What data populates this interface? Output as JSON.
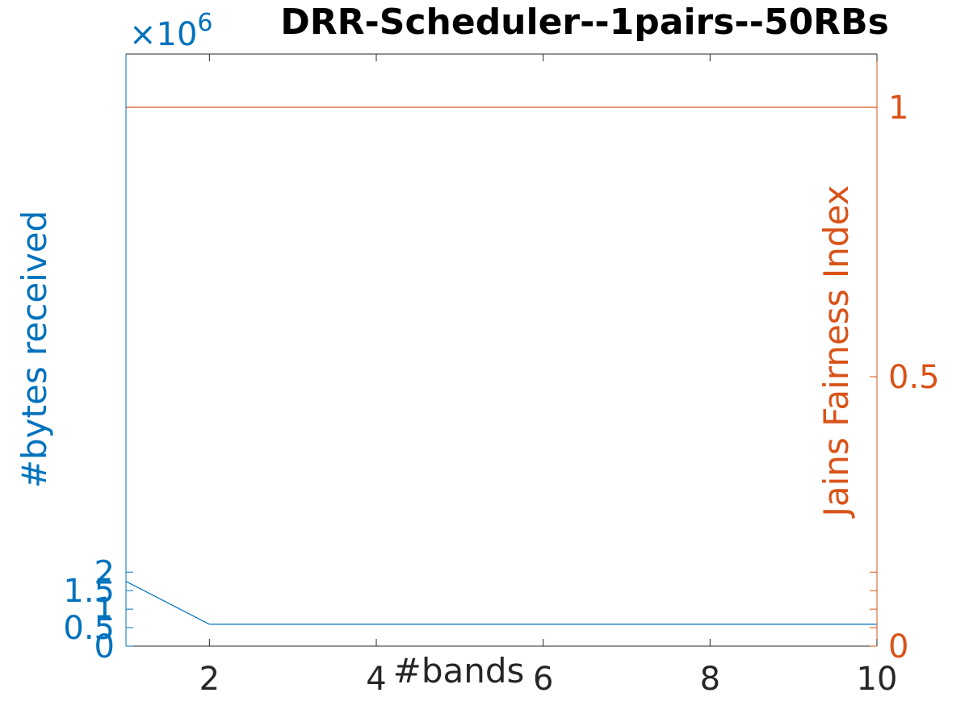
{
  "chart_data": {
    "type": "line",
    "title": "DRR-Scheduler--1pairs--50RBs",
    "xlabel": "#bands",
    "ylabel_left": "#bytes received",
    "ylabel_right": "Jains Fairness Index",
    "left_exponent_label": "×10",
    "left_exponent_power": "6",
    "xlim": [
      1,
      10
    ],
    "ylim_left": [
      0,
      16000000
    ],
    "ylim_right": [
      0,
      1.0
    ],
    "xticks": [
      2,
      4,
      6,
      8,
      10
    ],
    "xtick_labels": [
      "2",
      "4",
      "6",
      "8",
      "10"
    ],
    "yticks_left": [
      0,
      500000,
      1000000,
      1500000,
      2000000
    ],
    "ytick_labels_left": [
      "0",
      "0.5",
      "1",
      "1.5",
      "2"
    ],
    "yticks_right": [
      0,
      0.5,
      1
    ],
    "ytick_labels_right": [
      "0",
      "0.5",
      "1"
    ],
    "colors": {
      "left": "#0072BD",
      "right": "#D95319",
      "text": "#262626"
    },
    "series": [
      {
        "axis": "left",
        "color": "#0072BD",
        "x": [
          1,
          2,
          3,
          4,
          5,
          6,
          7,
          8,
          9,
          10
        ],
        "values": [
          1750000,
          590000,
          590000,
          590000,
          590000,
          590000,
          590000,
          590000,
          590000,
          590000
        ]
      },
      {
        "axis": "right",
        "color": "#D95319",
        "x": [
          1,
          2,
          3,
          4,
          5,
          6,
          7,
          8,
          9,
          10
        ],
        "values": [
          1,
          1,
          1,
          1,
          1,
          1,
          1,
          1,
          1,
          1
        ]
      }
    ]
  }
}
